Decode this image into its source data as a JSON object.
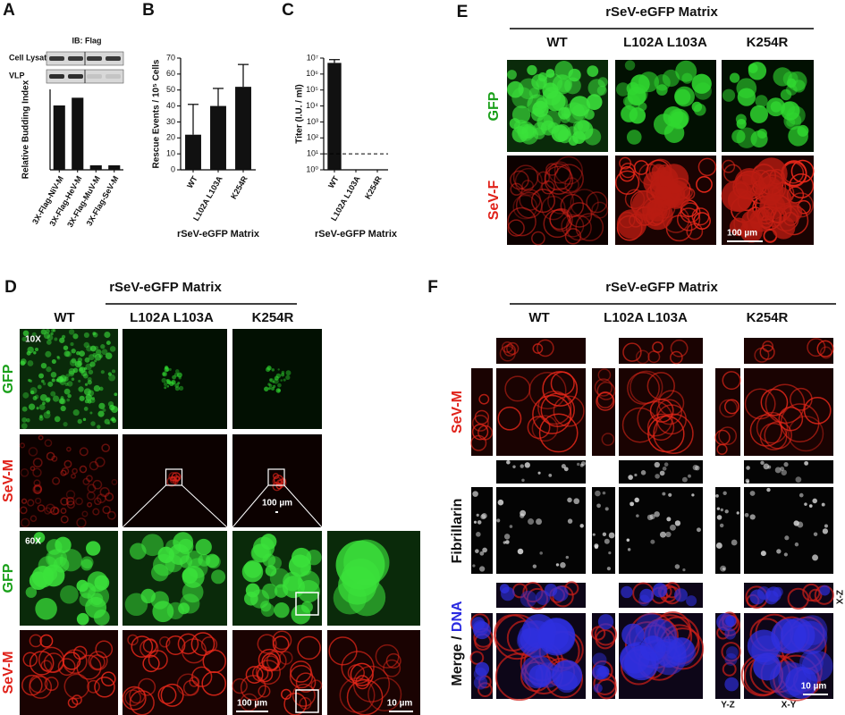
{
  "chart_data": [
    {
      "type": "bar",
      "panel_label": "A",
      "blot_title": "IB: Flag",
      "blot_rows": [
        "Cell Lysate",
        "VLP"
      ],
      "ylabel": "Relative Budding Index",
      "categories": [
        "3X-Flag-NiV-M",
        "3X-Flag-HeV-M",
        "3X-Flag-MuV-M",
        "3X-Flag-SeV-M"
      ],
      "values": [
        100,
        112,
        7,
        7
      ],
      "ylim": [
        0,
        125
      ],
      "color": "#111111"
    },
    {
      "type": "bar",
      "panel_label": "B",
      "ylabel": "Rescue Events / 10⁵ Cells",
      "xlabel": "rSeV-eGFP Matrix",
      "categories": [
        "WT",
        "L102A L103A",
        "K254R"
      ],
      "values": [
        22,
        40,
        52
      ],
      "errors": [
        19,
        11,
        14
      ],
      "ylim": [
        0,
        70
      ],
      "yticks": [
        0,
        10,
        20,
        30,
        40,
        50,
        60,
        70
      ],
      "color": "#111111"
    },
    {
      "type": "bar",
      "panel_label": "C",
      "ylabel": "Titer (I.U. / ml)",
      "xlabel": "rSeV-eGFP Matrix",
      "categories": [
        "WT",
        "L102A L103A",
        "K254R"
      ],
      "values": [
        5000000,
        null,
        null
      ],
      "errors": [
        3000000,
        null,
        null
      ],
      "log_scale": true,
      "ylim": [
        1,
        10000000
      ],
      "yticks": [
        {
          "value": 1,
          "label": "10⁰"
        },
        {
          "value": 10,
          "label": "10¹"
        },
        {
          "value": 100,
          "label": "10²"
        },
        {
          "value": 1000,
          "label": "10³"
        },
        {
          "value": 10000,
          "label": "10⁴"
        },
        {
          "value": 100000,
          "label": "10⁵"
        },
        {
          "value": 1000000,
          "label": "10⁶"
        },
        {
          "value": 10000000,
          "label": "10⁷"
        }
      ],
      "threshold": 10,
      "color": "#111111"
    }
  ],
  "panels": {
    "D": {
      "label": "D",
      "title": "rSeV-eGFP Matrix",
      "columns": [
        "WT",
        "L102A L103A",
        "K254R"
      ],
      "rows": [
        "GFP",
        "SeV-M",
        "GFP",
        "SeV-M"
      ],
      "magnifications": [
        "10X",
        "60X"
      ],
      "scale_bars": [
        "100 µm",
        "100 µm",
        "10 µm"
      ]
    },
    "E": {
      "label": "E",
      "title": "rSeV-eGFP Matrix",
      "columns": [
        "WT",
        "L102A L103A",
        "K254R"
      ],
      "rows": [
        "GFP",
        "SeV-F"
      ],
      "scale_bar": "100 µm"
    },
    "F": {
      "label": "F",
      "title": "rSeV-eGFP Matrix",
      "columns": [
        "WT",
        "L102A L103A",
        "K254R"
      ],
      "rows": [
        "SeV-M",
        "Fibrillarin"
      ],
      "merge_label": [
        "Merge / ",
        "DNA"
      ],
      "views": [
        "Y-Z",
        "X-Y",
        "X-Z"
      ],
      "scale_bar": "10 µm"
    }
  }
}
